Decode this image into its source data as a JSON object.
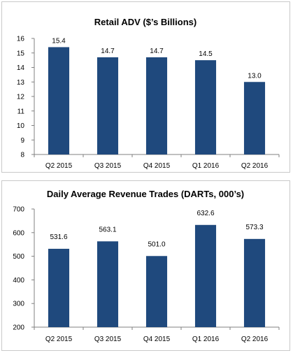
{
  "chart_data": [
    {
      "type": "bar",
      "title": "Retail ADV ($’s Billions)",
      "xlabel": "",
      "ylabel": "",
      "categories": [
        "Q2 2015",
        "Q3 2015",
        "Q4 2015",
        "Q1 2016",
        "Q2 2016"
      ],
      "values": [
        15.4,
        14.7,
        14.7,
        14.5,
        13.0
      ],
      "value_labels": [
        "15.4",
        "14.7",
        "14.7",
        "14.5",
        "13.0"
      ],
      "ylim": [
        8,
        16
      ],
      "yticks": [
        8,
        9,
        10,
        11,
        12,
        13,
        14,
        15,
        16
      ],
      "grid": false,
      "legend": "none",
      "bar_color": "#1f497d"
    },
    {
      "type": "bar",
      "title": "Daily Average Revenue Trades (DARTs, 000’s)",
      "xlabel": "",
      "ylabel": "",
      "categories": [
        "Q2 2015",
        "Q3 2015",
        "Q4 2015",
        "Q1 2016",
        "Q2 2016"
      ],
      "values": [
        531.6,
        563.1,
        501.0,
        632.6,
        573.3
      ],
      "value_labels": [
        "531.6",
        "563.1",
        "501.0",
        "632.6",
        "573.3"
      ],
      "ylim": [
        200,
        700
      ],
      "yticks": [
        200,
        300,
        400,
        500,
        600,
        700
      ],
      "grid": false,
      "legend": "none",
      "bar_color": "#1f497d"
    }
  ]
}
